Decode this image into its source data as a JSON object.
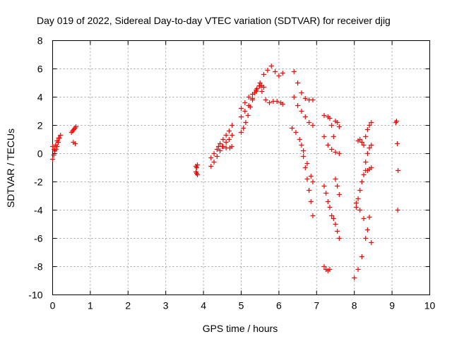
{
  "chart_data": {
    "type": "scatter",
    "title": "Day 019 of 2022, Sidereal Day-to-day VTEC variation (SDTVAR) for receiver djig",
    "xlabel": "GPS time / hours",
    "ylabel": "SDTVAR / TECUs",
    "xlim": [
      0,
      10
    ],
    "ylim": [
      -10,
      8
    ],
    "xticks": [
      "0",
      "1",
      "2",
      "3",
      "4",
      "5",
      "6",
      "7",
      "8",
      "9",
      "10"
    ],
    "yticks": [
      "-10",
      "-8",
      "-6",
      "-4",
      "-2",
      "0",
      "2",
      "4",
      "6",
      "8"
    ],
    "grid": true,
    "marker": "plus",
    "color": "#ff0000",
    "series": [
      {
        "x": [
          0.0,
          0.03,
          0.06,
          0.09,
          0.12,
          0.15,
          0.18,
          0.21
        ],
        "y": [
          -0.4,
          -0.1,
          0.2,
          0.3,
          0.5,
          0.8,
          1.1,
          1.3
        ]
      },
      {
        "x": [
          0.0,
          0.04,
          0.08,
          0.12,
          0.16
        ],
        "y": [
          0.5,
          0.3,
          0.6,
          0.9,
          1.1
        ]
      },
      {
        "x": [
          0.5,
          0.53,
          0.56,
          0.59,
          0.62,
          0.55,
          0.6
        ],
        "y": [
          1.5,
          1.6,
          1.7,
          1.8,
          1.9,
          0.8,
          0.7
        ]
      },
      {
        "x": [
          3.8,
          3.82,
          3.84,
          3.8,
          3.82,
          3.84
        ],
        "y": [
          -0.9,
          -1.0,
          -0.8,
          -1.3,
          -1.4,
          -1.5
        ]
      },
      {
        "x": [
          4.2,
          4.28,
          4.36,
          4.44,
          4.52,
          4.6,
          4.68,
          4.76
        ],
        "y": [
          -0.9,
          -0.6,
          -0.2,
          0.2,
          0.5,
          0.8,
          1.0,
          1.3
        ]
      },
      {
        "x": [
          4.2,
          4.28,
          4.36,
          4.44,
          4.52,
          4.6,
          4.68,
          4.76
        ],
        "y": [
          -0.3,
          0.0,
          0.3,
          0.7,
          1.0,
          1.3,
          1.6,
          2.0
        ]
      },
      {
        "x": [
          4.4,
          4.5,
          4.6,
          4.7,
          4.75
        ],
        "y": [
          0.5,
          0.5,
          0.4,
          0.4,
          0.5
        ]
      },
      {
        "x": [
          5.0,
          5.06,
          5.12,
          5.18,
          5.24,
          5.3,
          5.36,
          5.42,
          5.48,
          5.54,
          5.6
        ],
        "y": [
          1.5,
          1.8,
          2.2,
          2.7,
          3.3,
          3.9,
          4.3,
          4.6,
          4.8,
          4.8,
          4.7
        ]
      },
      {
        "x": [
          5.0,
          5.1,
          5.2,
          5.3,
          5.4,
          5.5,
          5.6,
          5.7,
          5.8,
          5.9,
          6.0,
          6.1
        ],
        "y": [
          2.6,
          3.0,
          3.4,
          3.8,
          4.4,
          5.0,
          5.6,
          5.9,
          6.2,
          5.8,
          5.5,
          5.7
        ]
      },
      {
        "x": [
          5.0,
          5.1,
          5.2,
          5.3,
          5.4,
          5.5
        ],
        "y": [
          3.2,
          3.6,
          4.0,
          4.2,
          4.5,
          4.8
        ]
      },
      {
        "x": [
          5.55,
          5.65,
          5.75,
          5.85,
          5.95,
          6.05,
          6.1
        ],
        "y": [
          4.4,
          3.8,
          3.6,
          3.7,
          3.7,
          3.6,
          3.5
        ]
      },
      {
        "x": [
          6.4,
          6.5,
          6.6,
          6.7,
          6.8,
          6.9
        ],
        "y": [
          5.8,
          5.0,
          4.3,
          3.9,
          3.8,
          3.8
        ]
      },
      {
        "x": [
          6.4,
          6.5,
          6.6,
          6.7,
          6.8,
          6.9
        ],
        "y": [
          4.0,
          3.4,
          3.0,
          2.6,
          2.2,
          2.0
        ]
      },
      {
        "x": [
          6.35,
          6.45,
          6.55,
          6.65,
          6.75,
          6.85,
          6.9
        ],
        "y": [
          1.8,
          1.5,
          1.0,
          0.2,
          -0.7,
          -1.6,
          -2.0
        ]
      },
      {
        "x": [
          6.6,
          6.65,
          6.7,
          6.75,
          6.8,
          6.85,
          6.9
        ],
        "y": [
          0.6,
          -0.2,
          -1.0,
          -1.8,
          -2.6,
          -3.4,
          -4.4
        ]
      },
      {
        "x": [
          7.2,
          7.3,
          7.35,
          7.4,
          7.45,
          7.5,
          7.55,
          7.6
        ],
        "y": [
          2.7,
          2.6,
          2.5,
          2.0,
          1.2,
          2.3,
          2.2,
          1.9
        ]
      },
      {
        "x": [
          7.2,
          7.3,
          7.4,
          7.5,
          7.6
        ],
        "y": [
          1.2,
          0.6,
          0.3,
          0.1,
          0.0
        ]
      },
      {
        "x": [
          7.2,
          7.25,
          7.3,
          7.35,
          7.4,
          7.45,
          7.5,
          7.55,
          7.6
        ],
        "y": [
          -2.3,
          -2.8,
          -3.4,
          -3.8,
          -4.4,
          -4.6,
          -5.0,
          -5.5,
          -6.0
        ]
      },
      {
        "x": [
          7.5,
          7.55,
          7.6
        ],
        "y": [
          -1.8,
          -2.3,
          -2.9
        ]
      },
      {
        "x": [
          7.2,
          7.25,
          7.3,
          7.35
        ],
        "y": [
          -8.0,
          -8.2,
          -8.3,
          -8.2
        ]
      },
      {
        "x": [
          8.0,
          8.1,
          8.2,
          8.3,
          8.4
        ],
        "y": [
          -8.8,
          -8.2,
          -7.3,
          -6.0,
          -4.5
        ]
      },
      {
        "x": [
          8.05,
          8.15,
          8.25,
          8.35,
          8.45
        ],
        "y": [
          -3.5,
          -4.0,
          -4.6,
          -5.4,
          -6.3
        ]
      },
      {
        "x": [
          8.1,
          8.15,
          8.2,
          8.25,
          8.3,
          8.35,
          8.4,
          8.45
        ],
        "y": [
          0.9,
          1.0,
          0.8,
          0.6,
          1.2,
          1.7,
          2.0,
          2.2
        ]
      },
      {
        "x": [
          8.05,
          8.1,
          8.15,
          8.2,
          8.25,
          8.3,
          8.35,
          8.4,
          8.45
        ],
        "y": [
          -3.8,
          -3.2,
          -2.6,
          -2.0,
          -1.5,
          -1.2,
          -1.2,
          -1.1,
          -1.0
        ]
      },
      {
        "x": [
          8.3,
          8.35,
          8.4,
          8.45
        ],
        "y": [
          -0.6,
          0.0,
          0.4,
          0.6
        ]
      },
      {
        "x": [
          9.1,
          9.12,
          9.14,
          9.16
        ],
        "y": [
          2.2,
          2.3,
          0.7,
          -1.2
        ]
      },
      {
        "x": [
          9.15
        ],
        "y": [
          -4.0
        ]
      }
    ]
  }
}
